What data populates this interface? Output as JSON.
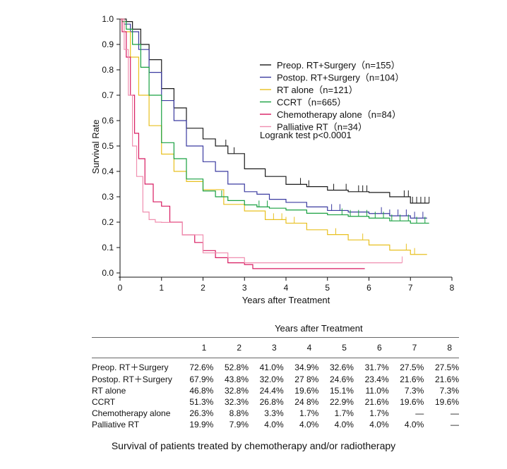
{
  "chart_data": {
    "type": "line",
    "xlabel": "Years after Treatment",
    "ylabel": "Survival Rate",
    "xlim": [
      0,
      8
    ],
    "ylim": [
      0,
      1.0
    ],
    "xticks": [
      "0",
      "1",
      "2",
      "3",
      "4",
      "5",
      "6",
      "7",
      "8"
    ],
    "yticks": [
      "0.0",
      "0.1",
      "0.2",
      "0.3",
      "0.4",
      "0.5",
      "0.6",
      "0.7",
      "0.8",
      "0.9",
      "1.0"
    ],
    "grid": false,
    "legend_position": "top-right",
    "annotation": "Logrank test p<0.0001",
    "series": [
      {
        "name": "Preop. RT+Surgery（n=155）",
        "color": "#1a1a1a",
        "x": [
          0,
          0.15,
          0.3,
          0.5,
          0.7,
          1,
          1.3,
          1.6,
          2,
          2.3,
          2.6,
          3,
          3.5,
          4,
          4.5,
          5,
          5.5,
          6,
          6.5,
          7,
          7.45
        ],
        "y": [
          1.0,
          0.99,
          0.96,
          0.9,
          0.84,
          0.726,
          0.65,
          0.57,
          0.528,
          0.5,
          0.47,
          0.41,
          0.38,
          0.349,
          0.34,
          0.326,
          0.32,
          0.317,
          0.3,
          0.275,
          0.275
        ],
        "censor": [
          2.55,
          2.75,
          4.35,
          4.55,
          5.15,
          5.45,
          5.75,
          5.85,
          5.95,
          6.85,
          6.95,
          7.05,
          7.15,
          7.25,
          7.35,
          7.45
        ]
      },
      {
        "name": "Postop. RT+Surgery（n=104）",
        "color": "#3b3ba0",
        "x": [
          0,
          0.1,
          0.25,
          0.45,
          0.7,
          1,
          1.3,
          1.6,
          2,
          2.3,
          2.6,
          3,
          3.3,
          3.6,
          4,
          4.5,
          5,
          5.5,
          6,
          6.5,
          7,
          7.4
        ],
        "y": [
          1.0,
          0.98,
          0.95,
          0.88,
          0.79,
          0.679,
          0.6,
          0.5,
          0.438,
          0.4,
          0.35,
          0.32,
          0.31,
          0.29,
          0.278,
          0.26,
          0.246,
          0.24,
          0.234,
          0.225,
          0.216,
          0.216
        ],
        "censor": [
          5.1,
          5.3,
          6.3,
          6.5,
          6.7,
          6.9,
          7.1,
          7.3
        ]
      },
      {
        "name": "RT alone（n=121）",
        "color": "#e8c020",
        "x": [
          0,
          0.1,
          0.25,
          0.45,
          0.7,
          1,
          1.3,
          1.6,
          2,
          2.5,
          3,
          3.5,
          4,
          4.5,
          5,
          5.5,
          6,
          6.5,
          7,
          7.4
        ],
        "y": [
          1.0,
          0.95,
          0.85,
          0.7,
          0.58,
          0.468,
          0.4,
          0.36,
          0.328,
          0.27,
          0.244,
          0.21,
          0.196,
          0.17,
          0.151,
          0.13,
          0.11,
          0.09,
          0.073,
          0.073
        ],
        "censor": [
          3.7,
          3.9,
          4.0,
          4.2,
          5.2,
          5.85,
          6.9,
          7.1
        ]
      },
      {
        "name": "CCRT（n=665）",
        "color": "#18a040",
        "x": [
          0,
          0.05,
          0.15,
          0.3,
          0.5,
          0.7,
          1,
          1.3,
          1.6,
          2,
          2.3,
          2.6,
          3,
          3.3,
          3.6,
          4,
          4.5,
          5,
          5.5,
          6,
          6.5,
          7,
          7.45
        ],
        "y": [
          1.0,
          0.99,
          0.96,
          0.9,
          0.81,
          0.7,
          0.513,
          0.45,
          0.37,
          0.323,
          0.3,
          0.285,
          0.268,
          0.26,
          0.255,
          0.248,
          0.235,
          0.229,
          0.223,
          0.216,
          0.205,
          0.196,
          0.196
        ],
        "censor": [
          2.45,
          3.35,
          3.55,
          5.35,
          5.55,
          5.75,
          5.95,
          6.15,
          6.35,
          6.55,
          6.75,
          6.95,
          7.15,
          7.35
        ]
      },
      {
        "name": "Chemotherapy alone（n=84）",
        "color": "#d81a60",
        "x": [
          0,
          0.05,
          0.15,
          0.25,
          0.35,
          0.45,
          0.6,
          0.8,
          1,
          1.2,
          1.5,
          1.8,
          2,
          2.3,
          2.6,
          3,
          3.2,
          4,
          5,
          5.9
        ],
        "y": [
          1.0,
          0.95,
          0.85,
          0.7,
          0.55,
          0.45,
          0.35,
          0.28,
          0.263,
          0.2,
          0.15,
          0.12,
          0.088,
          0.06,
          0.04,
          0.033,
          0.017,
          0.017,
          0.017,
          0.017
        ],
        "censor": []
      },
      {
        "name": "Palliative RT（n=34）",
        "color": "#f08fb0",
        "x": [
          0,
          0.1,
          0.2,
          0.3,
          0.4,
          0.55,
          0.7,
          0.85,
          1,
          1.5,
          2,
          2.6,
          3,
          4,
          5,
          6,
          6.8
        ],
        "y": [
          1.0,
          0.88,
          0.7,
          0.5,
          0.38,
          0.24,
          0.21,
          0.2,
          0.199,
          0.15,
          0.079,
          0.06,
          0.04,
          0.04,
          0.04,
          0.04,
          0.04
        ],
        "censor": [
          6.8
        ]
      }
    ]
  },
  "table": {
    "heading": "Years after Treatment",
    "columns": [
      "1",
      "2",
      "3",
      "4",
      "5",
      "6",
      "7",
      "8"
    ],
    "rows": [
      {
        "label": "Preop. RT＋Surgery",
        "values": [
          "72.6%",
          "52.8%",
          "41.0%",
          "34.9%",
          "32.6%",
          "31.7%",
          "27.5%",
          "27.5%"
        ]
      },
      {
        "label": "Postop. RT＋Surgery",
        "values": [
          "67.9%",
          "43.8%",
          "32.0%",
          "27 8%",
          "24.6%",
          "23.4%",
          "21.6%",
          "21.6%"
        ]
      },
      {
        "label": "RT alone",
        "values": [
          "46.8%",
          "32.8%",
          "24.4%",
          "19.6%",
          "15.1%",
          "11.0%",
          "7.3%",
          "7.3%"
        ]
      },
      {
        "label": "CCRT",
        "values": [
          "51.3%",
          "32.3%",
          "26.8%",
          "24 8%",
          "22.9%",
          "21.6%",
          "19.6%",
          "19.6%"
        ]
      },
      {
        "label": "Chemotherapy alone",
        "values": [
          "26.3%",
          "8.8%",
          "3.3%",
          "1.7%",
          "1.7%",
          "1.7%",
          "—",
          "—"
        ]
      },
      {
        "label": "Palliative RT",
        "values": [
          "19.9%",
          "7.9%",
          "4.0%",
          "4.0%",
          "4.0%",
          "4.0%",
          "4.0%",
          "—"
        ]
      }
    ]
  },
  "caption": "Survival of patients treated by chemotherapy and/or radiotherapy"
}
